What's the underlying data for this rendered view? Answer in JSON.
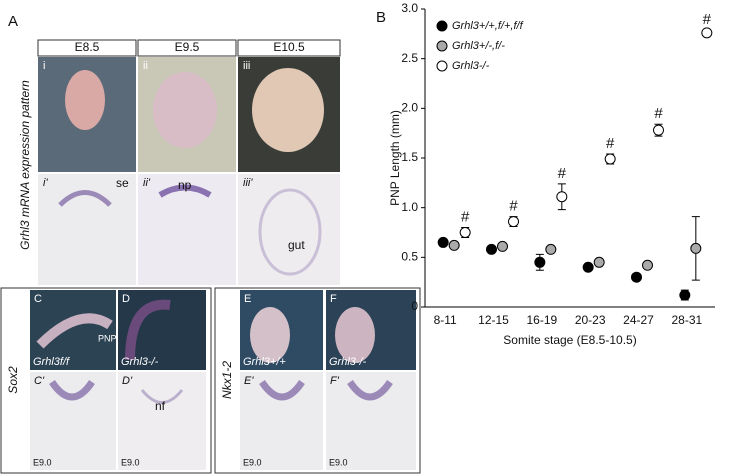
{
  "panel_a": {
    "label": "A",
    "side_label": "Grhl3 mRNA expression pattern",
    "columns": [
      "E8.5",
      "E9.5",
      "E10.5"
    ],
    "top_tags": [
      "i",
      "ii",
      "iii"
    ],
    "bottom_tags": [
      "i'",
      "ii'",
      "iii'"
    ],
    "annotations": [
      "se",
      "np",
      "gut"
    ]
  },
  "panel_c_d": {
    "side_label": "Sox2",
    "tags": [
      "C",
      "D",
      "C'",
      "D'"
    ],
    "pnp": "PNP",
    "genotypes": [
      "Grhl3f/f",
      "Grhl3-/-"
    ],
    "nf": "nf",
    "stages": [
      "E9.0",
      "E9.0"
    ]
  },
  "panel_e_f": {
    "side_label": "Nkx1-2",
    "tags": [
      "E",
      "F",
      "E'",
      "F'"
    ],
    "genotypes": [
      "Grhl3+/+",
      "Grhl3-/-"
    ],
    "stages": [
      "E9.0",
      "E9.0"
    ]
  },
  "chart_data": {
    "type": "scatter",
    "panel_label": "B",
    "y_label": "PNP Length (mm)",
    "x_label": "Somite stage (E8.5-10.5)",
    "categories": [
      "8-11",
      "12-15",
      "16-19",
      "20-23",
      "24-27",
      "28-31"
    ],
    "ylim": [
      0,
      3
    ],
    "yticks": [
      0,
      0.5,
      {
        "value": 1,
        "label": "1.0"
      },
      1.5,
      {
        "value": 2,
        "label": "2.0"
      },
      2.5,
      {
        "value": 3,
        "label": "3.0"
      }
    ],
    "legend": "upper left",
    "series": [
      {
        "name": "Grhl3+/+,f/+,f/f",
        "color": "#000000",
        "values": [
          0.65,
          0.58,
          0.45,
          0.4,
          0.3,
          0.12
        ],
        "errors": [
          0.02,
          0.03,
          0.08,
          0.03,
          0.03,
          0.05
        ]
      },
      {
        "name": "Grhl3+/-,f/-",
        "color": "#aaaaaa",
        "values": [
          0.62,
          0.61,
          0.58,
          0.45,
          0.42,
          0.59
        ],
        "errors": [
          0.02,
          0.03,
          0.03,
          0.03,
          0.03,
          0.32
        ]
      },
      {
        "name": "Grhl3-/-",
        "color": "#ffffff",
        "values": [
          0.75,
          0.86,
          1.11,
          1.49,
          1.78,
          2.76
        ],
        "errors": [
          0.05,
          0.05,
          0.13,
          0.05,
          0.06,
          0.03
        ]
      }
    ],
    "point_labels": [
      "#",
      "#",
      "#",
      "#",
      "#",
      "#"
    ]
  }
}
